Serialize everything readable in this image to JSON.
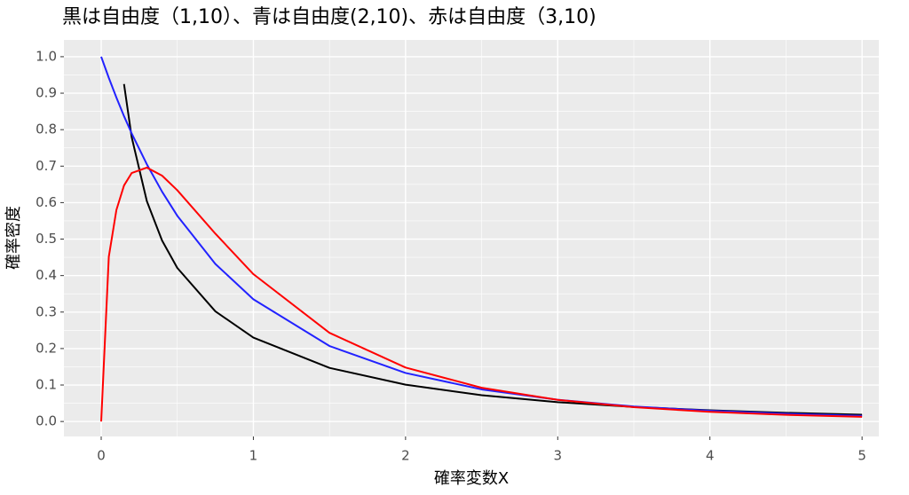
{
  "chart_data": {
    "type": "line",
    "title": "黒は自由度（1,10）、青は自由度(2,10)、赤は自由度（3,10)",
    "x_label": "確率変数X",
    "y_label": "確率密度",
    "x": [
      0,
      0.05,
      0.1,
      0.15,
      0.2,
      0.3,
      0.4,
      0.5,
      0.75,
      1,
      1.5,
      2,
      2.5,
      3,
      3.5,
      4,
      4.5,
      5
    ],
    "series": [
      {
        "name": "自由度（1,10）",
        "color": "#000000",
        "values": [
          null,
          null,
          null,
          0.925,
          0.78,
          0.604,
          0.496,
          0.421,
          0.302,
          0.23,
          0.147,
          0.101,
          0.0721,
          0.053,
          0.0399,
          0.0306,
          0.0238,
          0.0187
        ]
      },
      {
        "name": "自由度(2,10)",
        "color": "#2222ff",
        "values": [
          1,
          0.942,
          0.888,
          0.837,
          0.79,
          0.705,
          0.63,
          0.564,
          0.432,
          0.335,
          0.207,
          0.133,
          0.088,
          0.0596,
          0.041,
          0.0294,
          0.0213,
          0.0156
        ]
      },
      {
        "name": "自由度（3,10)",
        "color": "#ff0000",
        "values": [
          0,
          0.4516,
          0.58,
          0.647,
          0.681,
          0.696,
          0.674,
          0.634,
          0.515,
          0.404,
          0.243,
          0.148,
          0.0925,
          0.0594,
          0.0392,
          0.0265,
          0.0183,
          0.0129
        ]
      }
    ],
    "xlim": [
      -0.245,
      5.11
    ],
    "ylim": [
      -0.041,
      1.046
    ],
    "xticks": [
      0,
      1,
      2,
      3,
      4,
      5
    ],
    "yticks": [
      {
        "value": 0,
        "label": "0.0"
      },
      0.1,
      0.2,
      0.3,
      0.4,
      0.5,
      0.6,
      0.7,
      0.8,
      0.9,
      {
        "value": 1,
        "label": "1.0"
      }
    ],
    "grid": true
  }
}
